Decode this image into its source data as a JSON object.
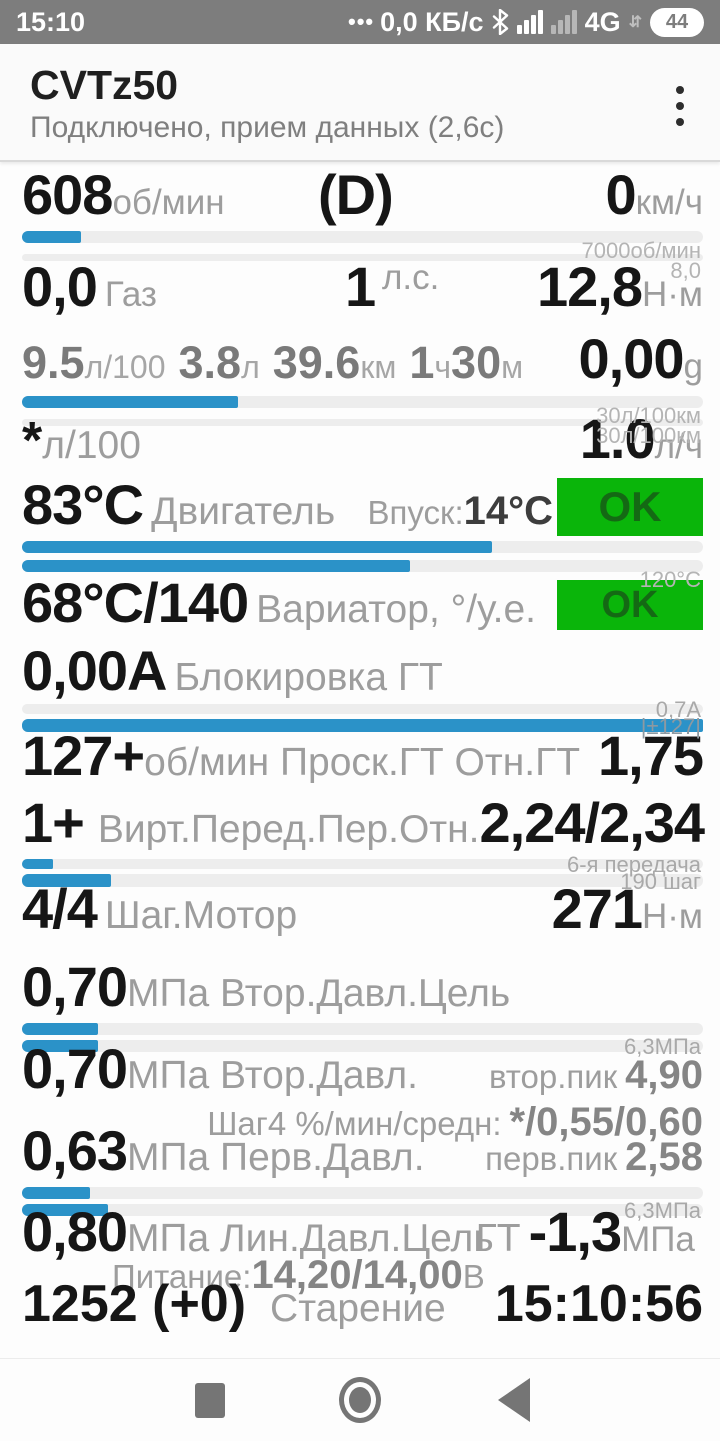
{
  "colors": {
    "accent_blue": "#2b92c8",
    "ok_green": "#0ab50a",
    "ok_text": "#146914",
    "status_bg": "#7d7d7d"
  },
  "status_bar": {
    "time": "15:10",
    "data_dots": "•••",
    "net_speed": "0,0 КБ/с",
    "bluetooth_icon": "bluetooth",
    "network": "4G",
    "battery": "44"
  },
  "header": {
    "title": "CVTz50",
    "subtitle": "Подключено, прием данных (2,6с)",
    "menu_icon": "kebab-menu"
  },
  "rows": {
    "rpm": {
      "value": "608",
      "unit": "об/мин",
      "gear": "(D)",
      "speed": "0",
      "speed_unit": "км/ч",
      "bar1_pct": 8.7,
      "bar1_label": "7000об/мин",
      "bar2_pct": 0,
      "bar2_label": "8,0"
    },
    "power": {
      "throttle": "0,0",
      "throttle_label": "Газ",
      "hp": "1",
      "hp_unit": "л.с.",
      "torque": "12,8",
      "torque_unit": "Н·м"
    },
    "fuel": {
      "segments": [
        {
          "v": "9.5",
          "u": "л/100"
        },
        {
          "v": "3.8",
          "u": "л"
        },
        {
          "v": "39.6",
          "u": "км"
        },
        {
          "v": "1",
          "u": "ч"
        },
        {
          "v": "30",
          "u": "м"
        }
      ],
      "right_value": "0,00",
      "right_unit": "g",
      "bar1_pct": 31.7,
      "bar1_label": "30л/100км",
      "bar2_pct": 0,
      "bar2_label": "30л/100км"
    },
    "inst_fuel": {
      "star": "*",
      "unit": "л/100",
      "value": "1.0",
      "value_unit": "л/ч"
    },
    "engine": {
      "value": "83°C",
      "label": "Двигатель",
      "intake_label": "Впуск:",
      "intake_value": "14°C",
      "ok": "OK",
      "bar1_pct": 69,
      "bar2_pct": 57,
      "bar2_label": "120°C"
    },
    "variator": {
      "value": "68°C/140",
      "label": "Вариатор, °/у.е.",
      "ok": "OK"
    },
    "lockup": {
      "value": "0,00A",
      "label": "Блокировка ГТ",
      "bar1_pct": 0,
      "bar1_label": "0,7A",
      "bar2_pct": 100,
      "bar2_label": "|±127|"
    },
    "slip": {
      "value": "127+",
      "label": "об/мин Проск.ГТ Отн.ГТ",
      "ratio": "1,75"
    },
    "gear": {
      "value": "1+",
      "label": "Вирт.Перед.Пер.Отн.",
      "ratio": "2,24/2,34",
      "bar1_pct": 4.5,
      "bar1_label": "6-я передача",
      "bar2_pct": 13,
      "bar2_label": "190 шаг"
    },
    "stepper": {
      "value": "4/4",
      "label": "Шаг.Мотор",
      "torque": "271",
      "torque_unit": "Н·м"
    },
    "sec_target": {
      "value": "0,70",
      "label": "МПа Втор.Давл.Цель",
      "bar1_pct": 11.1,
      "bar2_pct": 11.1,
      "bar2_label": "6,3МПа"
    },
    "sec_pressure": {
      "value": "0,70",
      "label": "МПа Втор.Давл.",
      "peak_label": "втор.пик",
      "peak": "4,90",
      "step_label": "Шаг4 %/мин/средн:",
      "step_value": "*/0,55/0,60"
    },
    "pri_pressure": {
      "value": "0,63",
      "label": "МПа Перв.Давл.",
      "peak_label": "перв.пик",
      "peak": "2,58",
      "bar1_pct": 10,
      "bar2_pct": 12.7,
      "bar2_label": "6,3МПа"
    },
    "line_pressure": {
      "value": "0,80",
      "label": "МПа Лин.Давл.Цель",
      "gt_label": "ГТ",
      "gt_value": "-1,3",
      "gt_unit": "МПа",
      "supply_label": "Питание:",
      "supply_value": "14,20/14,00",
      "supply_unit": "В"
    },
    "aging": {
      "value": "1252 (+0)",
      "label": "Старение",
      "time": "15:10:56"
    }
  },
  "nav": {
    "recents_icon": "square",
    "home_icon": "circle",
    "back_icon": "triangle-left"
  }
}
